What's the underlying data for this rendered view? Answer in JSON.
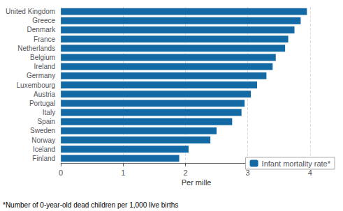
{
  "chart_data": {
    "type": "bar",
    "orientation": "horizontal",
    "categories": [
      "Finland",
      "Iceland",
      "Norway",
      "Sweden",
      "Spain",
      "Italy",
      "Portugal",
      "Austria",
      "Luxembourg",
      "Germany",
      "Ireland",
      "Belgium",
      "Netherlands",
      "France",
      "Denmark",
      "Greece",
      "United Kingdom"
    ],
    "series": [
      {
        "name": "Infant mortality rate*",
        "color": "#1269a4",
        "values": [
          1.9,
          2.05,
          2.4,
          2.5,
          2.75,
          2.9,
          2.95,
          3.05,
          3.15,
          3.3,
          3.4,
          3.45,
          3.6,
          3.65,
          3.75,
          3.85,
          3.95
        ]
      }
    ],
    "xlabel": "Per mille",
    "xlim": [
      0,
      4.35
    ],
    "xticks": [
      0,
      1,
      2,
      3,
      4
    ],
    "grid": true,
    "legend": "lower right",
    "annotations": [
      "*Number of 0-year-old dead children per 1,000 live births"
    ]
  }
}
